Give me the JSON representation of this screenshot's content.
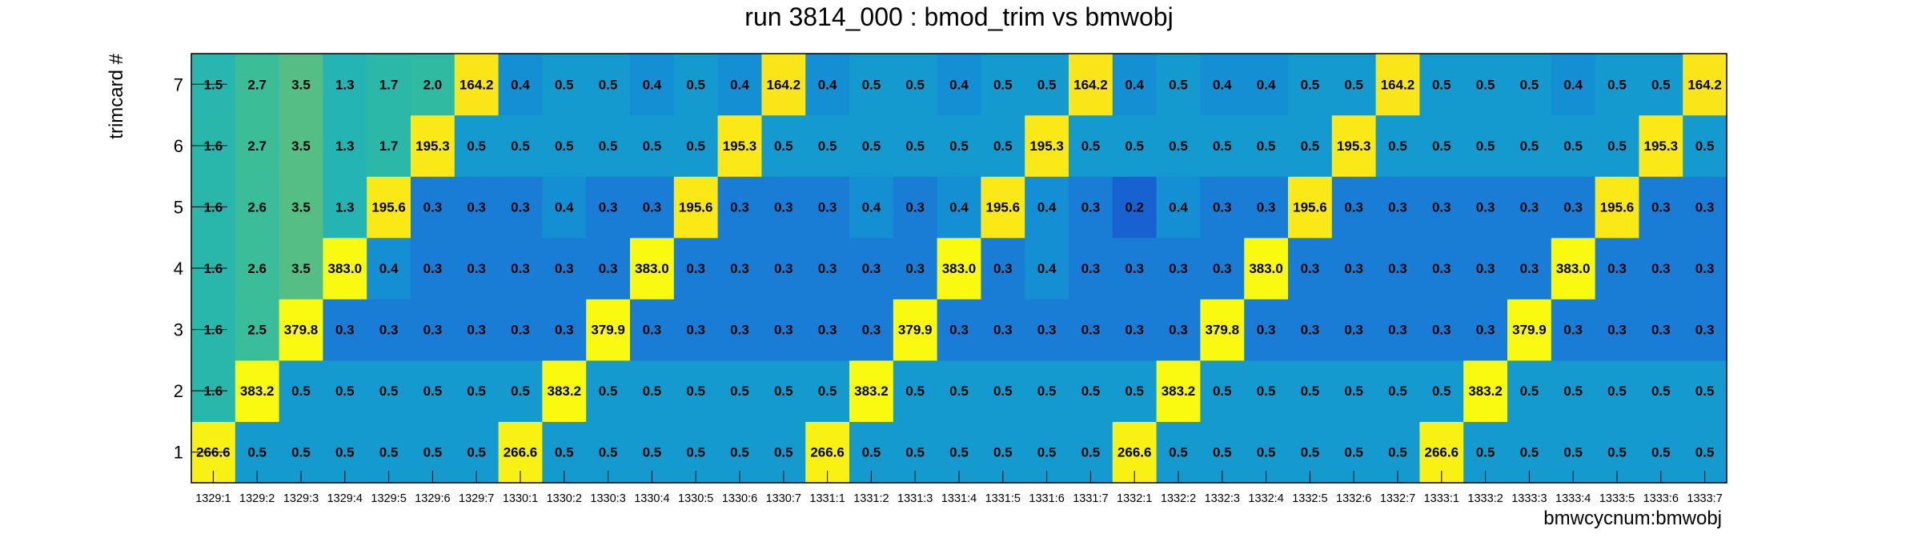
{
  "chart_data": {
    "type": "heatmap",
    "title": "run 3814_000 : bmod_trim vs bmwobj",
    "xlabel": "bmwcycnum:bmwobj",
    "ylabel": "trimcard #",
    "x_categories": [
      "1329:1",
      "1329:2",
      "1329:3",
      "1329:4",
      "1329:5",
      "1329:6",
      "1329:7",
      "1330:1",
      "1330:2",
      "1330:3",
      "1330:4",
      "1330:5",
      "1330:6",
      "1330:7",
      "1331:1",
      "1331:2",
      "1331:3",
      "1331:4",
      "1331:5",
      "1331:6",
      "1331:7",
      "1332:1",
      "1332:2",
      "1332:3",
      "1332:4",
      "1332:5",
      "1332:6",
      "1332:7",
      "1333:1",
      "1333:2",
      "1333:3",
      "1333:4",
      "1333:5",
      "1333:6",
      "1333:7"
    ],
    "y_categories": [
      "1",
      "2",
      "3",
      "4",
      "5",
      "6",
      "7"
    ],
    "values": [
      [
        "266.6",
        "0.5",
        "0.5",
        "0.5",
        "0.5",
        "0.5",
        "0.5",
        "266.6",
        "0.5",
        "0.5",
        "0.5",
        "0.5",
        "0.5",
        "0.5",
        "266.6",
        "0.5",
        "0.5",
        "0.5",
        "0.5",
        "0.5",
        "0.5",
        "266.6",
        "0.5",
        "0.5",
        "0.5",
        "0.5",
        "0.5",
        "0.5",
        "266.6",
        "0.5",
        "0.5",
        "0.5",
        "0.5",
        "0.5",
        "0.5"
      ],
      [
        "1.6",
        "383.2",
        "0.5",
        "0.5",
        "0.5",
        "0.5",
        "0.5",
        "0.5",
        "383.2",
        "0.5",
        "0.5",
        "0.5",
        "0.5",
        "0.5",
        "0.5",
        "383.2",
        "0.5",
        "0.5",
        "0.5",
        "0.5",
        "0.5",
        "0.5",
        "383.2",
        "0.5",
        "0.5",
        "0.5",
        "0.5",
        "0.5",
        "0.5",
        "383.2",
        "0.5",
        "0.5",
        "0.5",
        "0.5",
        "0.5"
      ],
      [
        "1.6",
        "2.5",
        "379.8",
        "0.3",
        "0.3",
        "0.3",
        "0.3",
        "0.3",
        "0.3",
        "379.9",
        "0.3",
        "0.3",
        "0.3",
        "0.3",
        "0.3",
        "0.3",
        "379.9",
        "0.3",
        "0.3",
        "0.3",
        "0.3",
        "0.3",
        "0.3",
        "379.8",
        "0.3",
        "0.3",
        "0.3",
        "0.3",
        "0.3",
        "0.3",
        "379.9",
        "0.3",
        "0.3",
        "0.3",
        "0.3"
      ],
      [
        "1.6",
        "2.6",
        "3.5",
        "383.0",
        "0.4",
        "0.3",
        "0.3",
        "0.3",
        "0.3",
        "0.3",
        "383.0",
        "0.3",
        "0.3",
        "0.3",
        "0.3",
        "0.3",
        "0.3",
        "383.0",
        "0.3",
        "0.4",
        "0.3",
        "0.3",
        "0.3",
        "0.3",
        "383.0",
        "0.3",
        "0.3",
        "0.3",
        "0.3",
        "0.3",
        "0.3",
        "383.0",
        "0.3",
        "0.3",
        "0.3"
      ],
      [
        "1.6",
        "2.6",
        "3.5",
        "1.3",
        "195.6",
        "0.3",
        "0.3",
        "0.3",
        "0.4",
        "0.3",
        "0.3",
        "195.6",
        "0.3",
        "0.3",
        "0.3",
        "0.4",
        "0.3",
        "0.4",
        "195.6",
        "0.4",
        "0.3",
        "0.2",
        "0.4",
        "0.3",
        "0.3",
        "195.6",
        "0.3",
        "0.3",
        "0.3",
        "0.3",
        "0.3",
        "0.3",
        "195.6",
        "0.3",
        "0.3"
      ],
      [
        "1.6",
        "2.7",
        "3.5",
        "1.3",
        "1.7",
        "195.3",
        "0.5",
        "0.5",
        "0.5",
        "0.5",
        "0.5",
        "0.5",
        "195.3",
        "0.5",
        "0.5",
        "0.5",
        "0.5",
        "0.5",
        "0.5",
        "195.3",
        "0.5",
        "0.5",
        "0.5",
        "0.5",
        "0.5",
        "0.5",
        "195.3",
        "0.5",
        "0.5",
        "0.5",
        "0.5",
        "0.5",
        "0.5",
        "195.3",
        "0.5"
      ],
      [
        "1.5",
        "2.7",
        "3.5",
        "1.3",
        "1.7",
        "2.0",
        "164.2",
        "0.4",
        "0.5",
        "0.5",
        "0.4",
        "0.5",
        "0.4",
        "164.2",
        "0.4",
        "0.5",
        "0.5",
        "0.4",
        "0.5",
        "0.5",
        "164.2",
        "0.4",
        "0.5",
        "0.4",
        "0.4",
        "0.5",
        "0.5",
        "164.2",
        "0.5",
        "0.5",
        "0.5",
        "0.4",
        "0.5",
        "0.5",
        "164.2"
      ]
    ],
    "color_map": "kBird",
    "grid": false,
    "legend": "none"
  }
}
